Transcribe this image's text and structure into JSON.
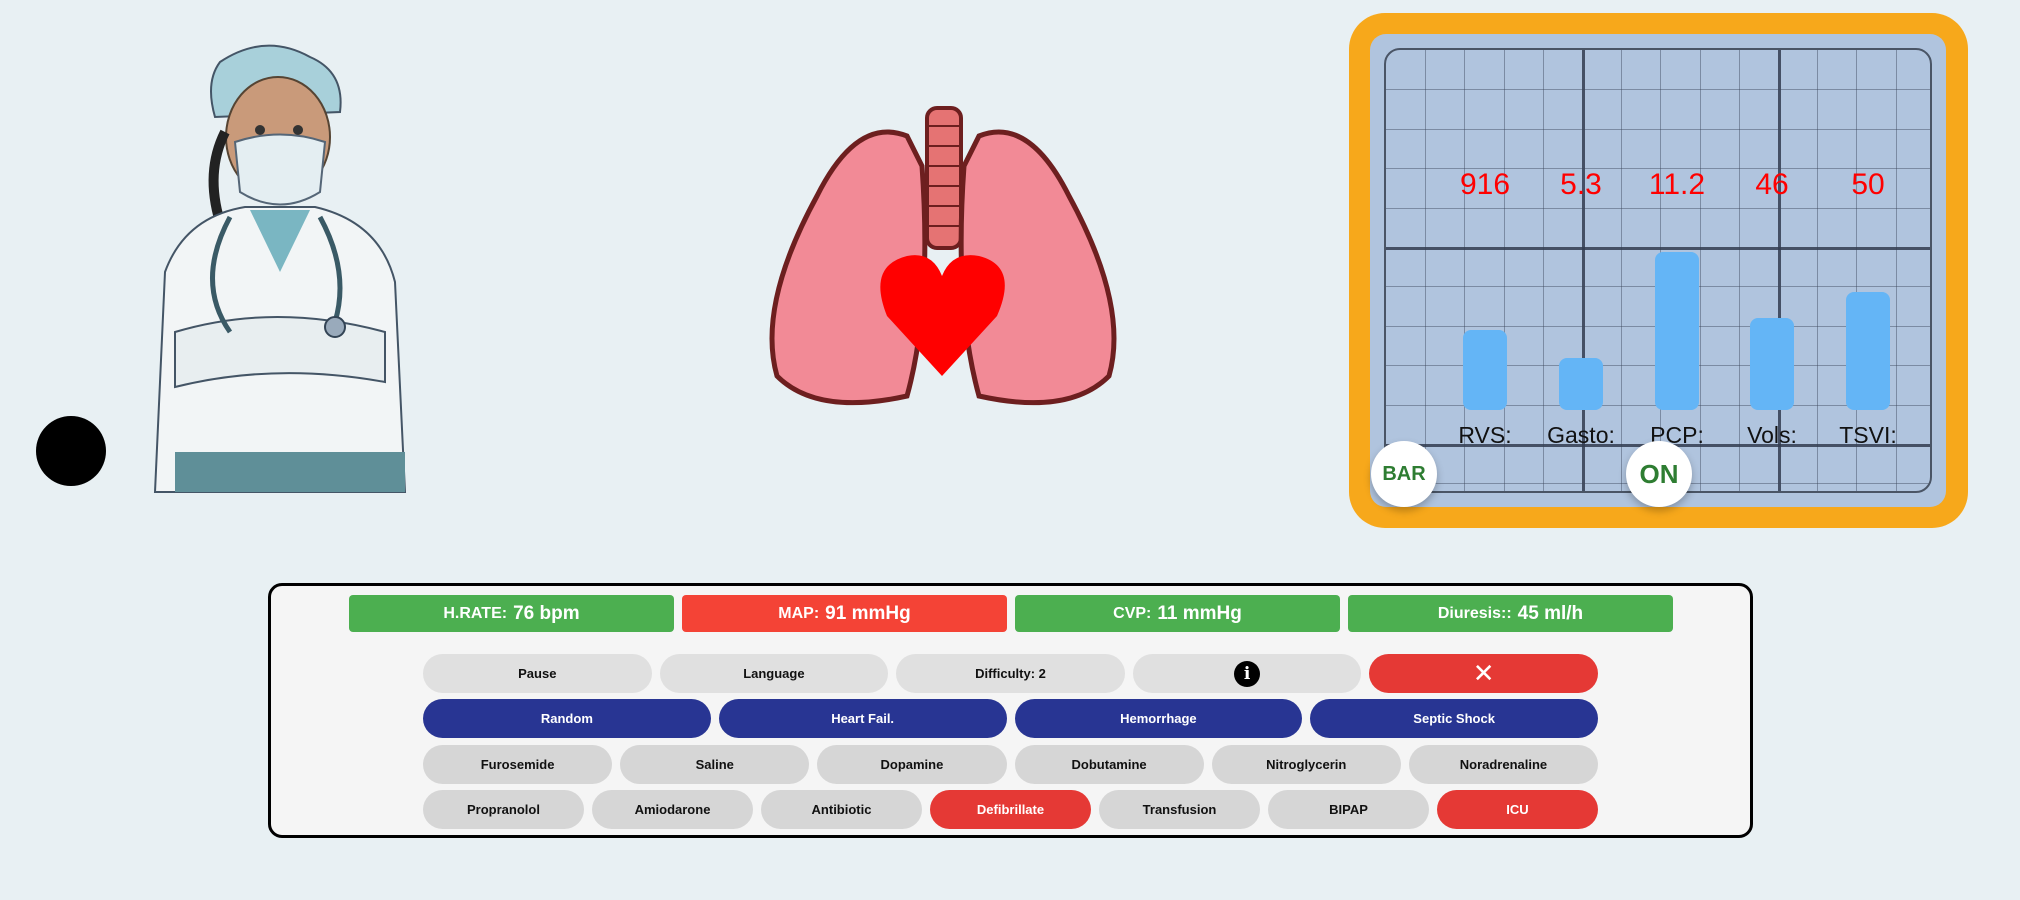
{
  "monitor": {
    "colors": {
      "frame": "#f7a81b",
      "screen": "#b0c4de",
      "bar": "#64b5f6",
      "value": "#ff0000"
    },
    "chart_data": {
      "type": "bar",
      "categories": [
        "RVS:",
        "Gasto:",
        "PCP:",
        "Vols:",
        "TSVI:"
      ],
      "values": [
        "916",
        "5.3",
        "11.2",
        "46",
        "50"
      ],
      "bar_levels": [
        0.4,
        0.26,
        0.79,
        0.46,
        0.59
      ]
    },
    "bar_button": "BAR",
    "on_button": "ON"
  },
  "status": [
    {
      "label": "H.RATE:",
      "value": "76 bpm",
      "color": "#4caf50"
    },
    {
      "label": "MAP:",
      "value": "91 mmHg",
      "color": "#f44336"
    },
    {
      "label": "CVP:",
      "value": "11 mmHg",
      "color": "#4caf50"
    },
    {
      "label": "Diuresis::",
      "value": "45 ml/h",
      "color": "#4caf50"
    }
  ],
  "controls": {
    "pause": "Pause",
    "language": "Language",
    "difficulty": "Difficulty: 2",
    "info_icon": "info-icon",
    "close_icon": "close-icon"
  },
  "scenarios": [
    "Random",
    "Heart Fail.",
    "Hemorrhage",
    "Septic Shock"
  ],
  "drugs": [
    "Furosemide",
    "Saline",
    "Dopamine",
    "Dobutamine",
    "Nitroglycerin",
    "Noradrenaline"
  ],
  "actions": [
    "Propranolol",
    "Amiodarone",
    "Antibiotic",
    "Defibrillate",
    "Transfusion",
    "BIPAP",
    "ICU"
  ]
}
